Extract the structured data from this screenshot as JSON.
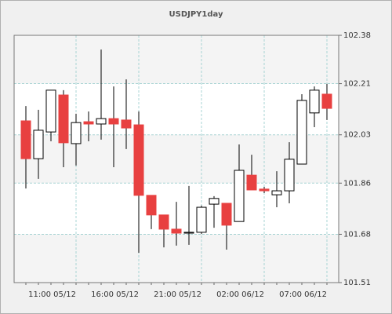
{
  "chart_data": {
    "type": "candlestick",
    "title": "USDJPY1day",
    "categories": [
      null,
      null,
      null,
      null,
      "11:00 05/12",
      null,
      null,
      null,
      null,
      "16:00 05/12",
      null,
      null,
      null,
      null,
      "21:00 05/12",
      null,
      null,
      null,
      null,
      "02:00 06/12",
      null,
      null,
      null,
      null,
      "07:00 06/12"
    ],
    "series": [
      {
        "name": "USDJPY1day",
        "up_color": "#ffffff",
        "down_color": "#e84040",
        "open": [
          102.079,
          101.946,
          102.04,
          102.17,
          101.999,
          102.076,
          102.068,
          102.087,
          102.082,
          102.065,
          101.817,
          101.748,
          101.698,
          101.684,
          101.687,
          101.786,
          101.789,
          101.725,
          101.888,
          101.839,
          101.819,
          101.833,
          101.927,
          102.107,
          102.173
        ],
        "high": [
          102.131,
          102.118,
          102.187,
          102.187,
          102.104,
          102.112,
          102.33,
          102.2,
          102.225,
          102.112,
          101.817,
          101.748,
          101.794,
          101.85,
          101.781,
          101.814,
          101.789,
          101.996,
          101.96,
          101.847,
          101.902,
          102.004,
          102.173,
          102.2,
          102.209
        ],
        "low": [
          101.841,
          101.875,
          102.007,
          101.916,
          101.922,
          102.007,
          102.013,
          101.916,
          101.98,
          101.615,
          101.698,
          101.634,
          101.64,
          101.643,
          101.681,
          101.703,
          101.626,
          101.725,
          101.836,
          101.825,
          101.775,
          101.789,
          101.927,
          102.057,
          102.082
        ],
        "close": [
          101.946,
          102.046,
          102.187,
          102.002,
          102.073,
          102.068,
          102.087,
          102.068,
          102.054,
          101.817,
          101.748,
          101.698,
          101.684,
          101.687,
          101.775,
          101.806,
          101.712,
          101.905,
          101.836,
          101.833,
          101.833,
          101.944,
          102.151,
          102.187,
          102.123
        ]
      }
    ],
    "ylim": [
      101.51,
      102.38
    ],
    "yticks": [
      101.51,
      101.68,
      101.86,
      102.03,
      102.21,
      102.38
    ],
    "grid": true,
    "y_axis_side": "right"
  }
}
